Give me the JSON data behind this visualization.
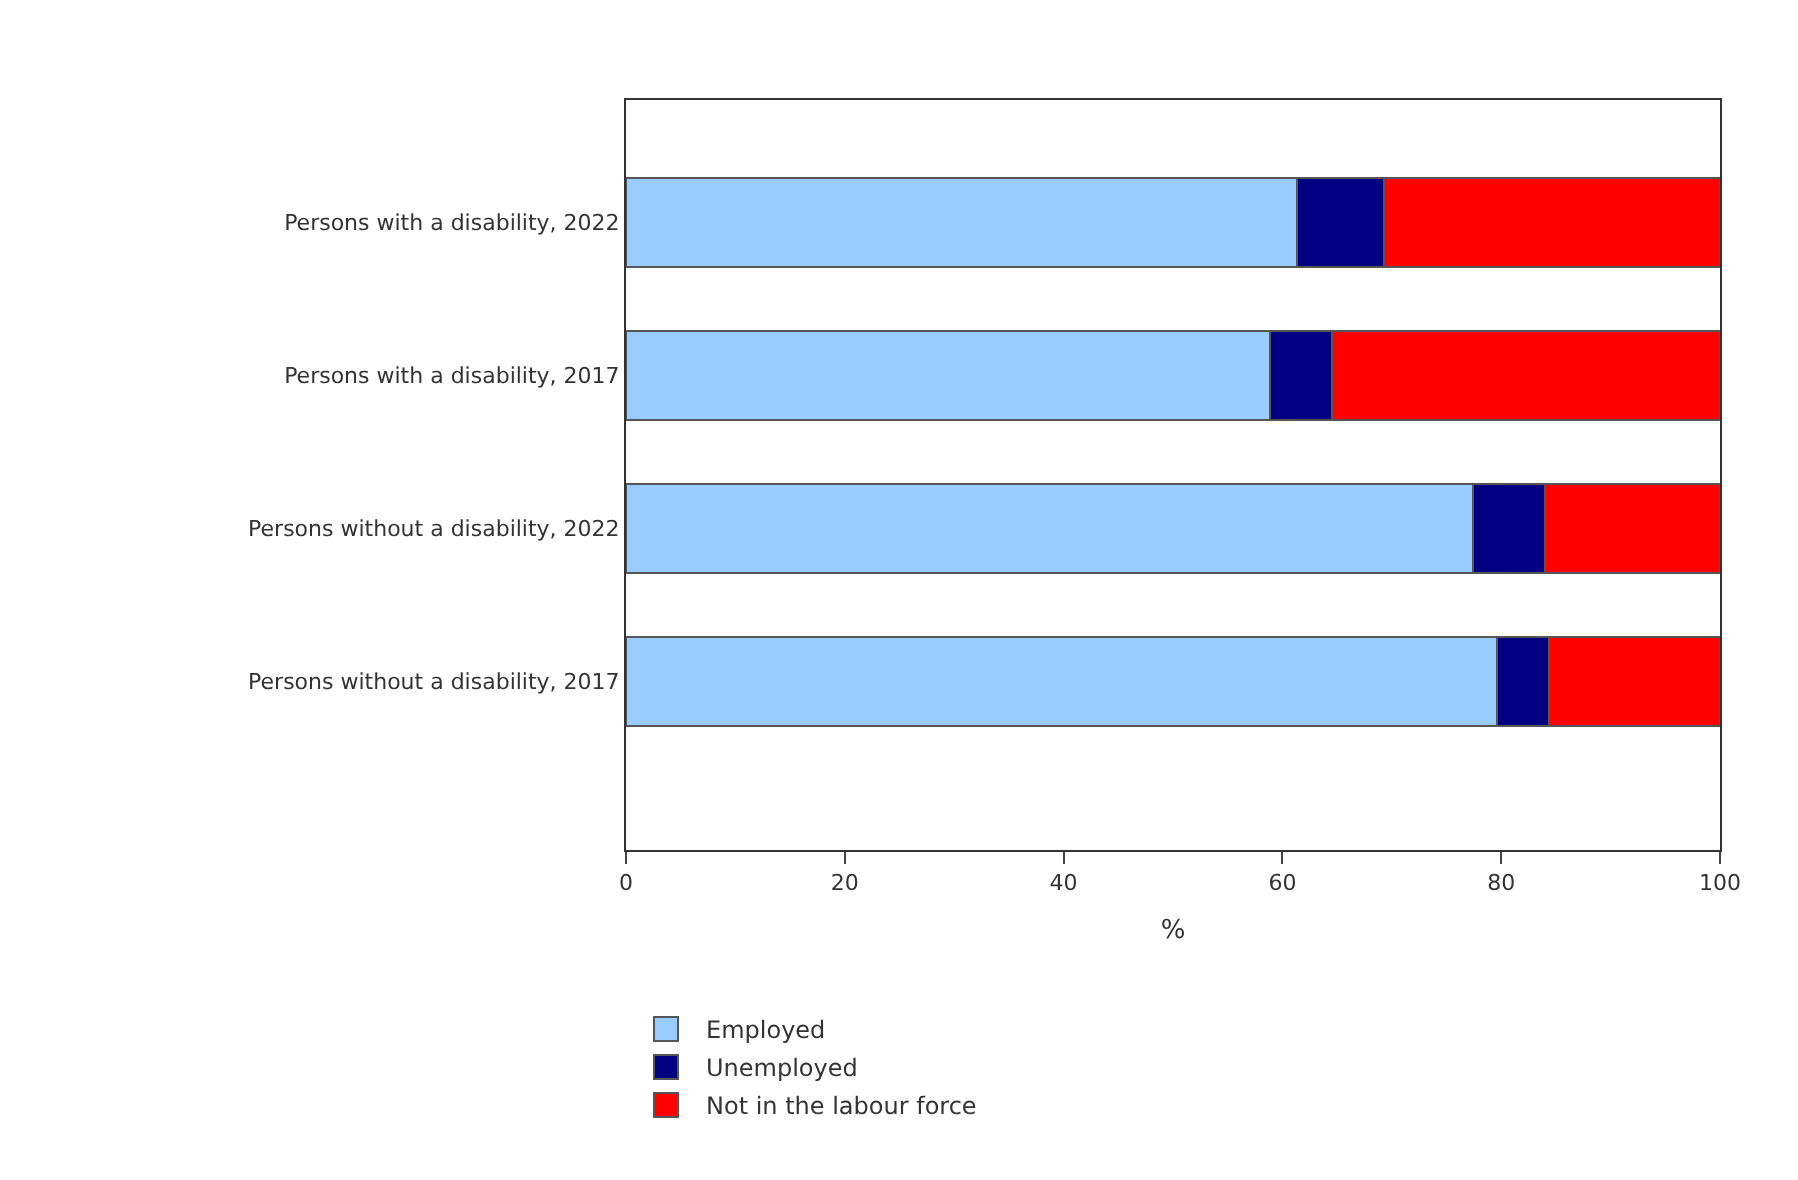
{
  "chart_data": {
    "type": "bar",
    "orientation": "horizontal",
    "stacked": true,
    "xlabel": "%",
    "xlim": [
      0,
      100
    ],
    "xticks": [
      0,
      20,
      40,
      60,
      80,
      100
    ],
    "legend": "bottom",
    "categories": [
      "Persons with a disability, 2022",
      "Persons with a disability, 2017",
      "Persons without a disability, 2022",
      "Persons without a disability, 2017"
    ],
    "series": [
      {
        "name": "Employed",
        "color": "#99ccff",
        "values": [
          61.3,
          58.9,
          77.4,
          79.6
        ]
      },
      {
        "name": "Unemployed",
        "color": "#000080",
        "values": [
          8.0,
          5.6,
          6.6,
          4.8
        ]
      },
      {
        "name": "Not in the labour force",
        "color": "#ff0000",
        "values": [
          30.7,
          35.5,
          16.0,
          15.6
        ]
      }
    ]
  }
}
